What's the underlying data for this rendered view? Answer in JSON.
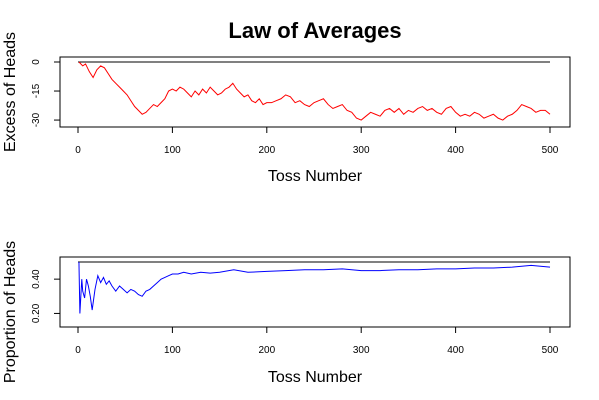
{
  "title": "Law of Averages",
  "chart_data": [
    {
      "type": "line",
      "xlabel": "Toss Number",
      "ylabel": "Excess of Heads",
      "xlim": [
        0,
        500
      ],
      "ylim": [
        -31,
        0
      ],
      "xticks": [
        0,
        100,
        200,
        300,
        400,
        500
      ],
      "xtick_labels": [
        "0",
        "100",
        "200",
        "300",
        "400",
        "500"
      ],
      "yticks": [
        0,
        -15,
        -30
      ],
      "ytick_labels": [
        "0",
        "-15",
        "-30"
      ],
      "reference_line": 0,
      "series": [
        {
          "color": "#ff0000",
          "x": [
            1,
            5,
            8,
            12,
            16,
            20,
            24,
            28,
            32,
            36,
            40,
            44,
            48,
            52,
            56,
            60,
            64,
            68,
            72,
            76,
            80,
            84,
            88,
            92,
            96,
            100,
            104,
            108,
            112,
            116,
            120,
            124,
            128,
            132,
            136,
            140,
            144,
            148,
            152,
            156,
            160,
            164,
            168,
            172,
            176,
            180,
            184,
            188,
            192,
            196,
            200,
            205,
            210,
            215,
            220,
            225,
            230,
            235,
            240,
            245,
            250,
            255,
            260,
            265,
            270,
            275,
            280,
            285,
            290,
            295,
            300,
            305,
            310,
            315,
            320,
            325,
            330,
            335,
            340,
            345,
            350,
            355,
            360,
            365,
            370,
            375,
            380,
            385,
            390,
            395,
            400,
            405,
            410,
            415,
            420,
            425,
            430,
            435,
            440,
            445,
            450,
            455,
            460,
            465,
            470,
            475,
            480,
            485,
            490,
            495,
            500
          ],
          "y": [
            0,
            -2,
            -1,
            -5,
            -8,
            -4,
            -2,
            -3,
            -6,
            -9,
            -11,
            -13,
            -15,
            -17,
            -20,
            -23,
            -25,
            -27,
            -26,
            -24,
            -22,
            -23,
            -21,
            -19,
            -15,
            -14,
            -15,
            -13,
            -14,
            -16,
            -18,
            -15,
            -17,
            -14,
            -16,
            -13,
            -15,
            -17,
            -16,
            -14,
            -13,
            -11,
            -14,
            -16,
            -18,
            -17,
            -20,
            -21,
            -19,
            -22,
            -21,
            -21,
            -20,
            -19,
            -17,
            -18,
            -21,
            -20,
            -22,
            -23,
            -21,
            -20,
            -19,
            -22,
            -24,
            -23,
            -22,
            -25,
            -26,
            -29,
            -30,
            -28,
            -26,
            -27,
            -28,
            -25,
            -24,
            -26,
            -24,
            -27,
            -25,
            -26,
            -24,
            -23,
            -25,
            -24,
            -26,
            -27,
            -24,
            -23,
            -26,
            -28,
            -27,
            -28,
            -26,
            -27,
            -29,
            -28,
            -27,
            -29,
            -30,
            -28,
            -27,
            -25,
            -22,
            -23,
            -24,
            -26,
            -25,
            -25,
            -27
          ]
        }
      ]
    },
    {
      "type": "line",
      "xlabel": "Toss Number",
      "ylabel": "Proportion of Heads",
      "xlim": [
        0,
        500
      ],
      "ylim": [
        0.15,
        0.5
      ],
      "xticks": [
        0,
        100,
        200,
        300,
        400,
        500
      ],
      "xtick_labels": [
        "0",
        "100",
        "200",
        "300",
        "400",
        "500"
      ],
      "yticks": [
        0.2,
        0.4
      ],
      "ytick_labels": [
        "0.20",
        "0.40"
      ],
      "reference_line": 0.5,
      "series": [
        {
          "color": "#0000ff",
          "x": [
            1,
            2,
            3,
            4,
            5,
            7,
            9,
            11,
            13,
            15,
            18,
            21,
            24,
            27,
            30,
            33,
            36,
            40,
            44,
            48,
            52,
            56,
            60,
            64,
            68,
            72,
            76,
            80,
            84,
            88,
            92,
            96,
            100,
            106,
            112,
            120,
            130,
            140,
            150,
            165,
            180,
            200,
            220,
            240,
            260,
            280,
            300,
            320,
            340,
            360,
            380,
            400,
            420,
            440,
            460,
            480,
            500
          ],
          "y": [
            0.5,
            0.2,
            0.3,
            0.4,
            0.33,
            0.29,
            0.4,
            0.36,
            0.3,
            0.22,
            0.34,
            0.42,
            0.38,
            0.41,
            0.37,
            0.39,
            0.36,
            0.33,
            0.36,
            0.34,
            0.32,
            0.34,
            0.33,
            0.31,
            0.3,
            0.33,
            0.34,
            0.36,
            0.38,
            0.4,
            0.41,
            0.42,
            0.43,
            0.43,
            0.44,
            0.43,
            0.44,
            0.435,
            0.44,
            0.455,
            0.44,
            0.445,
            0.45,
            0.455,
            0.455,
            0.46,
            0.45,
            0.45,
            0.455,
            0.455,
            0.46,
            0.46,
            0.465,
            0.465,
            0.47,
            0.48,
            0.47
          ]
        }
      ]
    }
  ]
}
